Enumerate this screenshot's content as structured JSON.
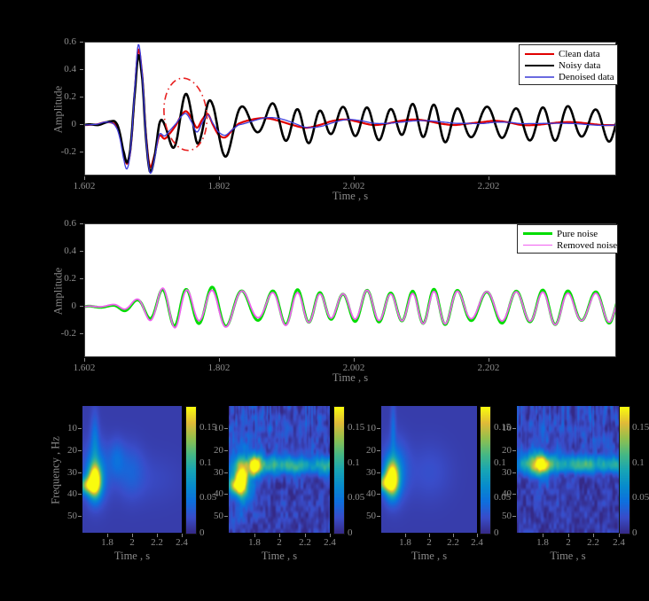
{
  "figure": {
    "background": "#000000",
    "plot_background": "#ffffff",
    "label_color": "#8e8e8e"
  },
  "chart_data": [
    {
      "id": "denoise_plot",
      "type": "line",
      "xlabel": "Time , s",
      "ylabel": "Amplitude",
      "xlim": [
        1.602,
        2.392
      ],
      "ylim": [
        -0.374,
        0.6
      ],
      "xticks": {
        "values": [
          1.602,
          1.802,
          2.002,
          2.202
        ],
        "labels": [
          "1.602",
          "1.802",
          "2.002",
          "2.202"
        ]
      },
      "yticks": {
        "values": [
          0.6,
          0.4,
          0.2,
          0,
          -0.2
        ],
        "labels": [
          "0.6",
          "0.4",
          "0.2",
          "0",
          "-0.2"
        ]
      },
      "legend_position": "top-right",
      "legend_items": [
        {
          "label": "Clean data",
          "color": "#e00000",
          "line_width": 2.2
        },
        {
          "label": "Noisy data",
          "color": "#000000",
          "line_width": 2.6
        },
        {
          "label": "Denoised data",
          "color": "#6a6ae0",
          "line_width": 2.2
        }
      ],
      "series": {
        "clean_keypoints": [
          [
            1.602,
            0
          ],
          [
            1.62,
            0.005
          ],
          [
            1.632,
            0.02
          ],
          [
            1.645,
            0.01
          ],
          [
            1.652,
            -0.05
          ],
          [
            1.66,
            -0.22
          ],
          [
            1.665,
            -0.28
          ],
          [
            1.67,
            -0.15
          ],
          [
            1.676,
            0.25
          ],
          [
            1.681,
            0.55
          ],
          [
            1.687,
            0.35
          ],
          [
            1.692,
            -0.05
          ],
          [
            1.698,
            -0.3
          ],
          [
            1.705,
            -0.22
          ],
          [
            1.712,
            -0.08
          ],
          [
            1.72,
            -0.1
          ],
          [
            1.728,
            -0.06
          ],
          [
            1.737,
            0
          ],
          [
            1.745,
            0.07
          ],
          [
            1.752,
            0.1
          ],
          [
            1.76,
            0.05
          ],
          [
            1.768,
            -0.02
          ],
          [
            1.776,
            0.04
          ],
          [
            1.784,
            0.08
          ],
          [
            1.792,
            0
          ],
          [
            1.8,
            -0.07
          ],
          [
            1.81,
            -0.09
          ],
          [
            1.82,
            -0.04
          ],
          [
            1.83,
            0.01
          ],
          [
            1.85,
            0.04
          ],
          [
            1.87,
            0.05
          ],
          [
            1.89,
            0.03
          ],
          [
            1.91,
            0
          ],
          [
            1.93,
            -0.02
          ],
          [
            1.95,
            0
          ],
          [
            1.97,
            0.03
          ],
          [
            1.99,
            0.04
          ],
          [
            2.01,
            0.02
          ],
          [
            2.03,
            0
          ],
          [
            2.05,
            0.01
          ],
          [
            2.07,
            0.03
          ],
          [
            2.09,
            0.04
          ],
          [
            2.11,
            0.03
          ],
          [
            2.13,
            0.01
          ],
          [
            2.15,
            0
          ],
          [
            2.17,
            0.01
          ],
          [
            2.19,
            0.02
          ],
          [
            2.21,
            0.03
          ],
          [
            2.23,
            0.02
          ],
          [
            2.25,
            0
          ],
          [
            2.27,
            0
          ],
          [
            2.29,
            0.01
          ],
          [
            2.31,
            0.02
          ],
          [
            2.33,
            0.02
          ],
          [
            2.35,
            0.01
          ],
          [
            2.37,
            0
          ],
          [
            2.392,
            0
          ]
        ],
        "denoised_deviation": [
          [
            1.602,
            0
          ],
          [
            1.64,
            0
          ],
          [
            1.655,
            -0.02
          ],
          [
            1.662,
            -0.045
          ],
          [
            1.672,
            0.01
          ],
          [
            1.681,
            0.035
          ],
          [
            1.69,
            -0.01
          ],
          [
            1.7,
            -0.045
          ],
          [
            1.712,
            0.01
          ],
          [
            1.73,
            0.02
          ],
          [
            1.75,
            -0.015
          ],
          [
            1.77,
            -0.03
          ],
          [
            1.8,
            0.02
          ],
          [
            1.84,
            -0.015
          ],
          [
            1.9,
            0.02
          ],
          [
            1.96,
            -0.015
          ],
          [
            2.02,
            0.015
          ],
          [
            2.08,
            -0.012
          ],
          [
            2.14,
            0.015
          ],
          [
            2.2,
            -0.012
          ],
          [
            2.26,
            0.012
          ],
          [
            2.32,
            -0.01
          ],
          [
            2.392,
            0
          ]
        ],
        "noisy_deviation": [
          [
            1.602,
            0
          ],
          [
            1.64,
            0
          ],
          [
            1.66,
            0.04
          ],
          [
            1.672,
            0
          ],
          [
            1.681,
            -0.09
          ],
          [
            1.69,
            0
          ],
          [
            1.698,
            0.05
          ],
          [
            1.71,
            0
          ],
          [
            1.75,
            0
          ],
          [
            2.392,
            0
          ]
        ]
      },
      "noise_model": {
        "freq_hz": 27,
        "envelope_keypoints": [
          [
            1.602,
            0.004
          ],
          [
            1.64,
            0.008
          ],
          [
            1.66,
            0.03
          ],
          [
            1.68,
            0.05
          ],
          [
            1.7,
            0.09
          ],
          [
            1.72,
            0.13
          ],
          [
            1.74,
            0.14
          ],
          [
            1.76,
            0.12
          ],
          [
            1.78,
            0.13
          ],
          [
            1.8,
            0.15
          ],
          [
            1.83,
            0.12
          ],
          [
            1.86,
            0.1
          ],
          [
            1.9,
            0.13
          ],
          [
            1.94,
            0.11
          ],
          [
            1.98,
            0.09
          ],
          [
            2.02,
            0.12
          ],
          [
            2.06,
            0.1
          ],
          [
            2.1,
            0.12
          ],
          [
            2.14,
            0.13
          ],
          [
            2.18,
            0.1
          ],
          [
            2.22,
            0.12
          ],
          [
            2.26,
            0.11
          ],
          [
            2.3,
            0.13
          ],
          [
            2.34,
            0.1
          ],
          [
            2.38,
            0.12
          ],
          [
            2.392,
            0.11
          ]
        ]
      },
      "annotation_ellipse": {
        "t_center": 1.751,
        "amp_center": 0.078,
        "t_radius": 0.0316,
        "amp_radius": 0.264,
        "color": "#e82020",
        "style": "dash-dot",
        "rotation_deg": -6
      }
    },
    {
      "id": "noise_plot",
      "type": "line",
      "xlabel": "Time , s",
      "ylabel": "Amplitude",
      "xlim": [
        1.602,
        2.392
      ],
      "ylim": [
        -0.374,
        0.6
      ],
      "xticks": {
        "values": [
          1.602,
          1.802,
          2.002,
          2.202
        ],
        "labels": [
          "1.602",
          "1.802",
          "2.002",
          "2.202"
        ]
      },
      "yticks": {
        "values": [
          0.6,
          0.4,
          0.2,
          0,
          -0.2
        ],
        "labels": [
          "0.6",
          "0.4",
          "0.2",
          "0",
          "-0.2"
        ]
      },
      "legend_position": "top-right",
      "legend_items": [
        {
          "label": "Pure noise",
          "color": "#00dd00",
          "line_width": 3
        },
        {
          "label": "Removed noise",
          "color": "#f060f0",
          "line_width": 1.8
        }
      ],
      "series": {
        "removed_scale": 0.93,
        "removed_deviation": [
          [
            1.602,
            0
          ],
          [
            1.68,
            0.01
          ],
          [
            1.7,
            -0.02
          ],
          [
            1.72,
            0.02
          ],
          [
            1.74,
            -0.03
          ],
          [
            1.76,
            0.02
          ],
          [
            1.8,
            -0.02
          ],
          [
            1.85,
            0.015
          ],
          [
            1.9,
            -0.015
          ],
          [
            2,
            0.01
          ],
          [
            2.1,
            -0.01
          ],
          [
            2.2,
            0.01
          ],
          [
            2.3,
            -0.01
          ],
          [
            2.392,
            0
          ]
        ]
      }
    },
    {
      "id": "spectrograms",
      "type": "heatmap",
      "xlabel": "Time , s",
      "ylabel": "Frequency , Hz",
      "xlim": [
        1.6,
        2.4
      ],
      "freq_lim": [
        0,
        57.5
      ],
      "value_max": 0.18,
      "background_value": 0.012,
      "xticks": {
        "values": [
          1.8,
          2,
          2.2,
          2.4
        ],
        "labels": [
          "1.8",
          "2",
          "2.2",
          "2.4"
        ]
      },
      "freq_ticks": {
        "values": [
          10,
          20,
          30,
          40,
          50
        ],
        "labels": [
          "10",
          "20",
          "30",
          "40",
          "50"
        ]
      },
      "colorbar_ticks": {
        "values": [
          0.15,
          0.1,
          0.05,
          0
        ],
        "labels": [
          "0.15",
          "0.1",
          "0.05",
          "0"
        ]
      },
      "colormap": "parula",
      "colormap_stops": [
        [
          0,
          53,
          42,
          135
        ],
        [
          0.125,
          57,
          77,
          202
        ],
        [
          0.25,
          14,
          111,
          222
        ],
        [
          0.375,
          7,
          140,
          205
        ],
        [
          0.5,
          24,
          165,
          181
        ],
        [
          0.625,
          70,
          184,
          132
        ],
        [
          0.75,
          145,
          192,
          78
        ],
        [
          0.875,
          225,
          186,
          56
        ],
        [
          1,
          249,
          251,
          14
        ]
      ],
      "panels": [
        {
          "name": "clean-spectrogram",
          "textured": false,
          "seed": 1,
          "blobs": [
            [
              1.7,
              34,
              0.035,
              5,
              0.185
            ],
            [
              1.635,
              36,
              0.045,
              2.6,
              0.11
            ],
            [
              1.71,
              30,
              0.065,
              9,
              0.05
            ],
            [
              1.7,
              16,
              0.022,
              9,
              0.035
            ],
            [
              1.875,
              24,
              0.045,
              6,
              0.028
            ],
            [
              1.99,
              29,
              0.07,
              8,
              0.02
            ],
            [
              2.1,
              33,
              0.2,
              8,
              0.008
            ]
          ]
        },
        {
          "name": "noisy-spectrogram",
          "textured": true,
          "seed": 2,
          "blobs": [
            [
              1.7,
              34,
              0.035,
              5,
              0.17
            ],
            [
              1.645,
              36,
              0.04,
              2.6,
              0.1
            ],
            [
              1.81,
              27,
              0.035,
              3.2,
              0.145
            ],
            [
              1.72,
              32,
              0.07,
              10,
              0.045
            ],
            [
              2.1,
              27,
              0.38,
              3,
              0.065
            ],
            [
              2.12,
              27,
              0.07,
              2.6,
              0.035
            ],
            [
              2.38,
              27,
              0.06,
              2.6,
              0.04
            ],
            [
              1.95,
              27,
              0.05,
              2.6,
              0.03
            ],
            [
              2,
              10,
              0.35,
              8,
              0.012
            ]
          ]
        },
        {
          "name": "denoised-spectrogram",
          "textured": false,
          "seed": 3,
          "blobs": [
            [
              1.69,
              33,
              0.04,
              5.5,
              0.185
            ],
            [
              1.62,
              35,
              0.05,
              2.6,
              0.1
            ],
            [
              1.72,
              29,
              0.07,
              9,
              0.042
            ],
            [
              1.7,
              11,
              0.015,
              9,
              0.03
            ],
            [
              2,
              30,
              0.13,
              9,
              0.012
            ]
          ]
        },
        {
          "name": "removed-noise-spectrogram",
          "textured": true,
          "seed": 4,
          "blobs": [
            [
              1.79,
              26.5,
              0.05,
              3,
              0.12
            ],
            [
              1.8,
              28,
              0.09,
              6,
              0.032
            ],
            [
              2.08,
              26.5,
              0.4,
              2.8,
              0.07
            ],
            [
              2.12,
              26.5,
              0.07,
              2.5,
              0.033
            ],
            [
              2.36,
              26.5,
              0.06,
              2.5,
              0.038
            ],
            [
              1.67,
              25,
              0.05,
              4,
              0.03
            ],
            [
              2,
              10,
              0.35,
              8,
              0.012
            ]
          ]
        }
      ]
    }
  ]
}
